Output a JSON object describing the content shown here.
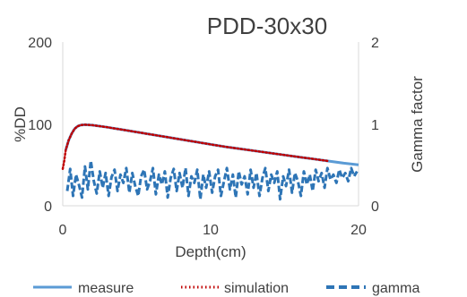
{
  "chart_data": {
    "type": "line",
    "title": "PDD-30x30",
    "xlabel": "Depth(cm)",
    "ylabel": "%DD",
    "y2label": "Gamma factor",
    "xlim": [
      0,
      20
    ],
    "ylim": [
      0,
      200
    ],
    "y2lim": [
      0,
      2
    ],
    "xticks": [
      "0",
      "10",
      "20"
    ],
    "yticks": [
      "0",
      "100",
      "200"
    ],
    "y2ticks": [
      "0",
      "1",
      "2"
    ],
    "grid": false,
    "legend_position": "bottom",
    "series": [
      {
        "name": "measure",
        "axis": "left",
        "color": "#5B9BD5",
        "style": "solid",
        "x": [
          0.2,
          0.4,
          0.6,
          0.8,
          1.0,
          1.2,
          1.5,
          2,
          3,
          4,
          5,
          6,
          7,
          8,
          9,
          10,
          11,
          12,
          13,
          14,
          15,
          16,
          17,
          18,
          19,
          20
        ],
        "values": [
          68,
          80,
          88,
          94,
          97,
          98.5,
          99,
          98.5,
          96,
          93,
          90,
          87,
          84,
          81,
          78,
          75,
          72,
          69.5,
          67,
          64.5,
          62,
          59.5,
          57,
          54.5,
          52,
          50
        ]
      },
      {
        "name": "simulation",
        "axis": "left",
        "color": "#C00000",
        "style": "dotted",
        "x": [
          0.0,
          0.1,
          0.2,
          0.4,
          0.6,
          0.8,
          1.0,
          1.2,
          1.5,
          2,
          3,
          4,
          5,
          6,
          7,
          8,
          9,
          10,
          11,
          12,
          13,
          14,
          15,
          16,
          17,
          18
        ],
        "values": [
          45,
          55,
          68,
          80,
          88,
          94,
          97,
          98.5,
          99,
          98.5,
          96,
          93,
          90,
          87,
          84,
          81,
          78,
          75,
          72,
          69.5,
          67,
          64.5,
          62,
          59.5,
          57,
          54.5
        ]
      },
      {
        "name": "gamma",
        "axis": "right",
        "color": "#2E75B6",
        "style": "dashed",
        "x": [
          0.3,
          0.5,
          0.7,
          0.9,
          1.1,
          1.3,
          1.5,
          1.7,
          1.9,
          2.1,
          2.3,
          2.5,
          2.7,
          2.9,
          3.1,
          3.3,
          3.5,
          3.7,
          3.9,
          4.1,
          4.3,
          4.5,
          4.7,
          4.9,
          5.1,
          5.3,
          5.5,
          5.7,
          5.9,
          6.1,
          6.3,
          6.5,
          6.7,
          6.9,
          7.1,
          7.3,
          7.5,
          7.7,
          7.9,
          8.1,
          8.3,
          8.5,
          8.7,
          8.9,
          9.1,
          9.3,
          9.5,
          9.7,
          9.9,
          10.1,
          10.3,
          10.5,
          10.7,
          10.9,
          11.1,
          11.3,
          11.5,
          11.7,
          11.9,
          12.1,
          12.3,
          12.5,
          12.7,
          12.9,
          13.1,
          13.3,
          13.5,
          13.7,
          13.9,
          14.1,
          14.3,
          14.5,
          14.7,
          14.9,
          15.1,
          15.3,
          15.5,
          15.7,
          15.9,
          16.1,
          16.3,
          16.5,
          16.7,
          16.9,
          17.1,
          17.3,
          17.5,
          17.7,
          17.9,
          18.1,
          18.3,
          18.5,
          18.7,
          18.9,
          19.1,
          19.3,
          19.5,
          19.7,
          19.9
        ],
        "values": [
          0.18,
          0.45,
          0.12,
          0.38,
          0.25,
          0.1,
          0.48,
          0.2,
          0.55,
          0.3,
          0.15,
          0.42,
          0.22,
          0.4,
          0.12,
          0.35,
          0.44,
          0.18,
          0.38,
          0.28,
          0.46,
          0.16,
          0.4,
          0.24,
          0.12,
          0.36,
          0.44,
          0.2,
          0.3,
          0.46,
          0.14,
          0.38,
          0.26,
          0.42,
          0.1,
          0.34,
          0.45,
          0.18,
          0.4,
          0.22,
          0.46,
          0.12,
          0.36,
          0.28,
          0.44,
          0.08,
          0.38,
          0.22,
          0.42,
          0.16,
          0.36,
          0.44,
          0.12,
          0.3,
          0.46,
          0.2,
          0.38,
          0.1,
          0.42,
          0.26,
          0.36,
          0.14,
          0.44,
          0.22,
          0.4,
          0.12,
          0.34,
          0.46,
          0.18,
          0.38,
          0.28,
          0.42,
          0.08,
          0.36,
          0.24,
          0.44,
          0.16,
          0.4,
          0.3,
          0.12,
          0.42,
          0.26,
          0.38,
          0.18,
          0.44,
          0.3,
          0.4,
          0.22,
          0.46,
          0.32,
          0.38,
          0.28,
          0.44,
          0.34,
          0.4,
          0.3,
          0.46,
          0.36,
          0.42
        ]
      }
    ]
  }
}
